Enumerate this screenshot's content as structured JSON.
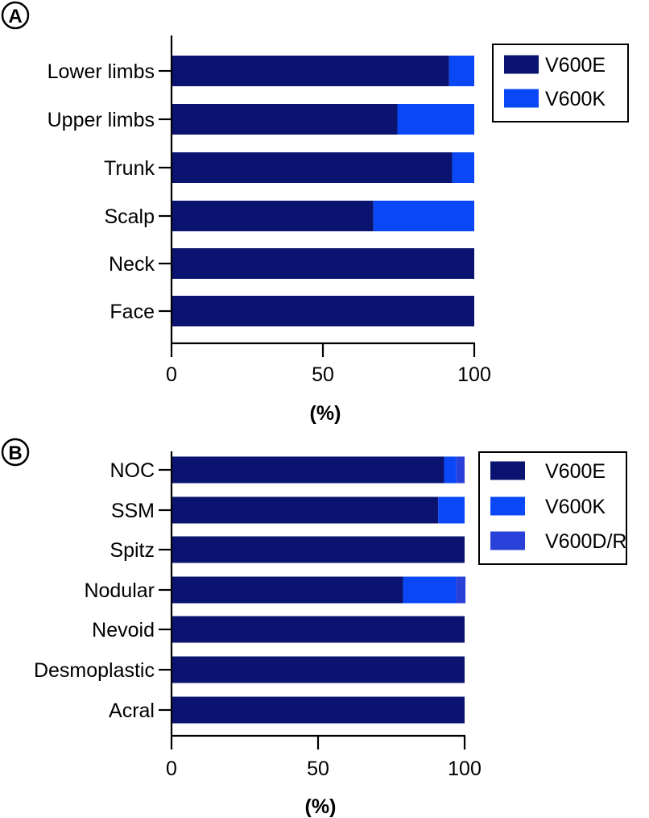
{
  "chart_data": [
    {
      "panel": "A",
      "type": "bar",
      "orientation": "horizontal",
      "stacked": true,
      "categories": [
        "Lower limbs",
        "Upper limbs",
        "Trunk",
        "Scalp",
        "Neck",
        "Face"
      ],
      "series": [
        {
          "name": "V600E",
          "color": "#0a1470",
          "values": [
            91.7,
            74.6,
            92.7,
            66.7,
            100,
            100
          ]
        },
        {
          "name": "V600K",
          "color": "#0a48f7",
          "values": [
            8.3,
            25.4,
            7.3,
            33.3,
            0,
            0
          ]
        }
      ],
      "xlabel": "(%)",
      "xlim": [
        0,
        100
      ],
      "xticks": [
        "0",
        "50",
        "100"
      ],
      "legend_position": "top-right",
      "grid": false
    },
    {
      "panel": "B",
      "type": "bar",
      "orientation": "horizontal",
      "stacked": true,
      "categories": [
        "NOC",
        "SSM",
        "Spitz",
        "Nodular",
        "Nevoid",
        "Desmoplastic",
        "Acral"
      ],
      "series": [
        {
          "name": "V600E",
          "color": "#0a1470",
          "values": [
            93,
            91,
            100,
            79,
            100,
            100,
            100
          ]
        },
        {
          "name": "V600K",
          "color": "#0a48f7",
          "values": [
            4.2,
            9,
            0,
            18,
            0,
            0,
            0
          ]
        },
        {
          "name": "V600D/R",
          "color": "#2a41d9",
          "values": [
            2.8,
            0,
            0,
            3.3,
            0,
            0,
            0
          ]
        }
      ],
      "xlabel": "(%)",
      "xlim": [
        0,
        100
      ],
      "xticks": [
        "0",
        "50",
        "100"
      ],
      "legend_position": "top-right",
      "grid": false
    }
  ]
}
